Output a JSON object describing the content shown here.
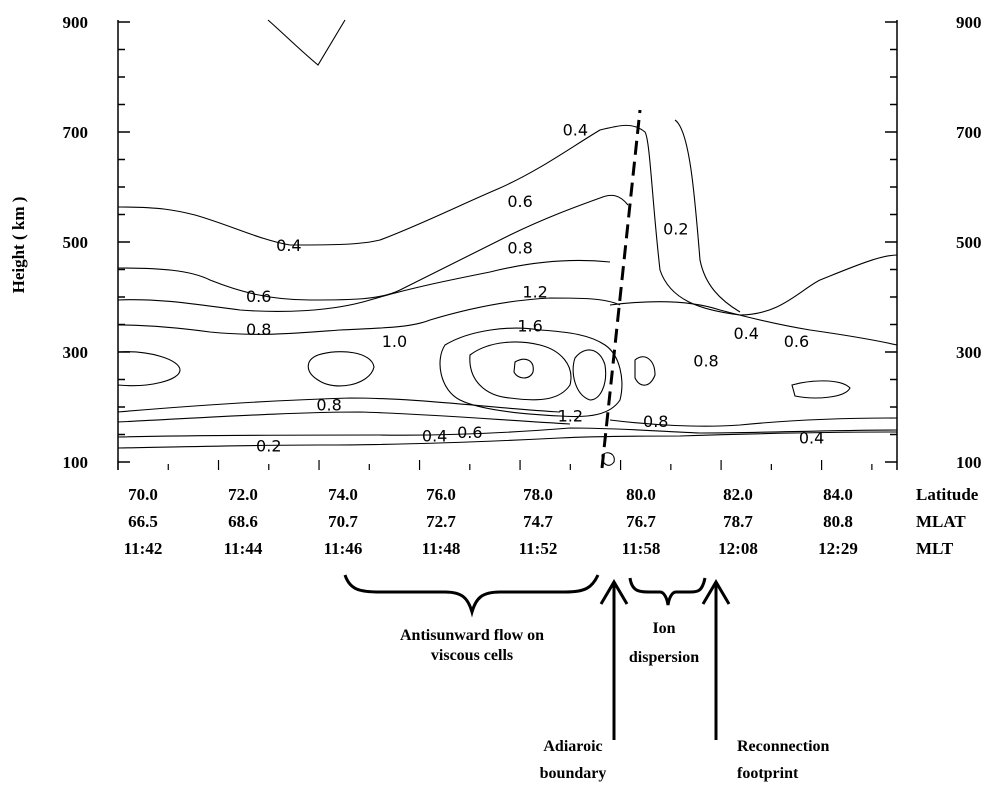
{
  "chart_data": {
    "type": "contour",
    "ylabel": "Height ( km )",
    "ylim": [
      80,
      900
    ],
    "y_ticks": [
      "100",
      "300",
      "500",
      "700",
      "900"
    ],
    "right_y_ticks": [
      "100",
      "300",
      "500",
      "700",
      "900"
    ],
    "xlim": [
      70.0,
      85.5
    ],
    "x_rows": [
      {
        "label": "Latitude",
        "values": [
          "70.0",
          "72.0",
          "74.0",
          "76.0",
          "78.0",
          "80.0",
          "82.0",
          "84.0"
        ]
      },
      {
        "label": "MLAT",
        "values": [
          "66.5",
          "68.6",
          "70.7",
          "72.7",
          "74.7",
          "76.7",
          "78.7",
          "80.8"
        ]
      },
      {
        "label": "MLT",
        "values": [
          "11:42",
          "11:44",
          "11:46",
          "11:48",
          "11:52",
          "11:58",
          "12:08",
          "12:29"
        ]
      }
    ],
    "contour_labels": [
      {
        "text": "0.4",
        "x": 79.1,
        "y": 705
      },
      {
        "text": "0.6",
        "x": 78.0,
        "y": 575
      },
      {
        "text": "0.4",
        "x": 73.4,
        "y": 495
      },
      {
        "text": "0.2",
        "x": 81.1,
        "y": 525
      },
      {
        "text": "0.8",
        "x": 78.0,
        "y": 490
      },
      {
        "text": "0.6",
        "x": 72.8,
        "y": 402
      },
      {
        "text": "1.2",
        "x": 78.3,
        "y": 410
      },
      {
        "text": "0.8",
        "x": 72.8,
        "y": 342
      },
      {
        "text": "1.0",
        "x": 75.5,
        "y": 320
      },
      {
        "text": "1.6",
        "x": 78.2,
        "y": 348
      },
      {
        "text": "0.4",
        "x": 82.5,
        "y": 335
      },
      {
        "text": "0.6",
        "x": 83.5,
        "y": 320
      },
      {
        "text": "0.8",
        "x": 81.7,
        "y": 285
      },
      {
        "text": "0.8",
        "x": 74.2,
        "y": 205
      },
      {
        "text": "1.2",
        "x": 79.0,
        "y": 185
      },
      {
        "text": "0.8",
        "x": 80.7,
        "y": 175
      },
      {
        "text": "0.4",
        "x": 76.3,
        "y": 148
      },
      {
        "text": "0.6",
        "x": 77.0,
        "y": 155
      },
      {
        "text": "0.4",
        "x": 83.8,
        "y": 145
      },
      {
        "text": "0.2",
        "x": 73.0,
        "y": 130
      }
    ],
    "annotations": {
      "antisunward": [
        "Antisunward flow on",
        "viscous cells"
      ],
      "ion": [
        "Ion",
        "dispersion"
      ],
      "adiaroic": [
        "Adiaroic",
        "boundary"
      ],
      "reconnection": [
        "Reconnection",
        "footprint"
      ]
    }
  }
}
